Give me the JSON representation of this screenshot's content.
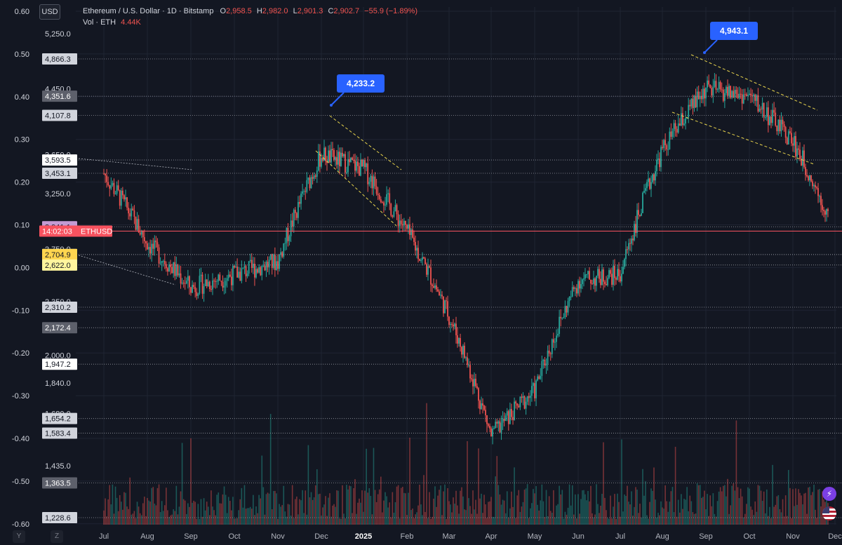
{
  "header": {
    "symbol": "Ethereum / U.S. Dollar · 1D · Bitstamp",
    "o_label": "O",
    "o_val": "2,958.5",
    "h_label": "H",
    "h_val": "2,982.0",
    "l_label": "L",
    "l_val": "2,901.3",
    "c_label": "C",
    "c_val": "2,902.7",
    "change": "−55.9 (−1.89%)",
    "vol_label": "Vol · ETH",
    "vol_val": "4.44K"
  },
  "currency": "USD",
  "corner": {
    "y": "Y",
    "z": "Z"
  },
  "colors": {
    "up": "#26a69a",
    "down": "#ef5350",
    "bg": "#131722",
    "callout": "#2962ff",
    "price_line": "#f7525f"
  },
  "chart_data": {
    "type": "candlestick",
    "x_months": [
      "Jul",
      "Aug",
      "Sep",
      "Oct",
      "Nov",
      "Dec",
      "2025",
      "Feb",
      "Mar",
      "Apr",
      "May",
      "Jun",
      "Jul",
      "Aug",
      "Sep",
      "Oct",
      "Nov",
      "Dec"
    ],
    "left_axis": {
      "ticks": [
        "0.60",
        "0.50",
        "0.40",
        "0.30",
        "0.20",
        "0.10",
        "0.00",
        "-0.10",
        "-0.20",
        "-0.30",
        "-0.40",
        "-0.50",
        "-0.60"
      ]
    },
    "right_axis_price_ticks": [
      "5,250.0",
      "4,450.0",
      "3,650.0",
      "3,250.0",
      "2,750.0",
      "2,350.0",
      "2,000.0",
      "1,840.0",
      "1,680.0",
      "1,435.0"
    ],
    "price_labels": [
      {
        "text": "4,866.3",
        "style": "gray"
      },
      {
        "text": "4,351.6",
        "style": "dark"
      },
      {
        "text": "4,107.8",
        "style": "gray"
      },
      {
        "text": "3,593.5",
        "style": "white"
      },
      {
        "text": "3,453.1",
        "style": "gray"
      },
      {
        "text": "2,941.1",
        "style": "purple"
      },
      {
        "text": "2,706.6",
        "style": "yellow"
      },
      {
        "text": "2,704.9",
        "style": "gold"
      },
      {
        "text": "2,622.0",
        "style": "yellow"
      },
      {
        "text": "2,310.2",
        "style": "gray"
      },
      {
        "text": "2,172.4",
        "style": "dark"
      },
      {
        "text": "1,947.2",
        "style": "white"
      },
      {
        "text": "1,654.2",
        "style": "gray"
      },
      {
        "text": "1,583.4",
        "style": "gray"
      },
      {
        "text": "1,363.5",
        "style": "dark"
      },
      {
        "text": "1,228.6",
        "style": "gray"
      }
    ],
    "current_price": {
      "countdown": "14:02:03",
      "symbol": "ETHUSD"
    },
    "callouts": [
      "4,233.2",
      "4,943.1"
    ],
    "anchor_prices": [
      {
        "month": "Jul",
        "price": 3450
      },
      {
        "month": "Aug",
        "price": 2800
      },
      {
        "month": "Sep",
        "price": 2450
      },
      {
        "month": "Oct",
        "price": 2550
      },
      {
        "month": "Nov",
        "price": 2650
      },
      {
        "month": "Dec",
        "price": 3650
      },
      {
        "month": "2025",
        "price": 3500
      },
      {
        "month": "Feb",
        "price": 2900
      },
      {
        "month": "Mar",
        "price": 2250
      },
      {
        "month": "Apr",
        "price": 1570
      },
      {
        "month": "May",
        "price": 1800
      },
      {
        "month": "Jun",
        "price": 2500
      },
      {
        "month": "Jul",
        "price": 2550
      },
      {
        "month": "Aug",
        "price": 3700
      },
      {
        "month": "Sep",
        "price": 4450
      },
      {
        "month": "Oct",
        "price": 4350
      },
      {
        "month": "Nov",
        "price": 3800
      },
      {
        "month": "Dec",
        "price": 2900
      }
    ]
  }
}
